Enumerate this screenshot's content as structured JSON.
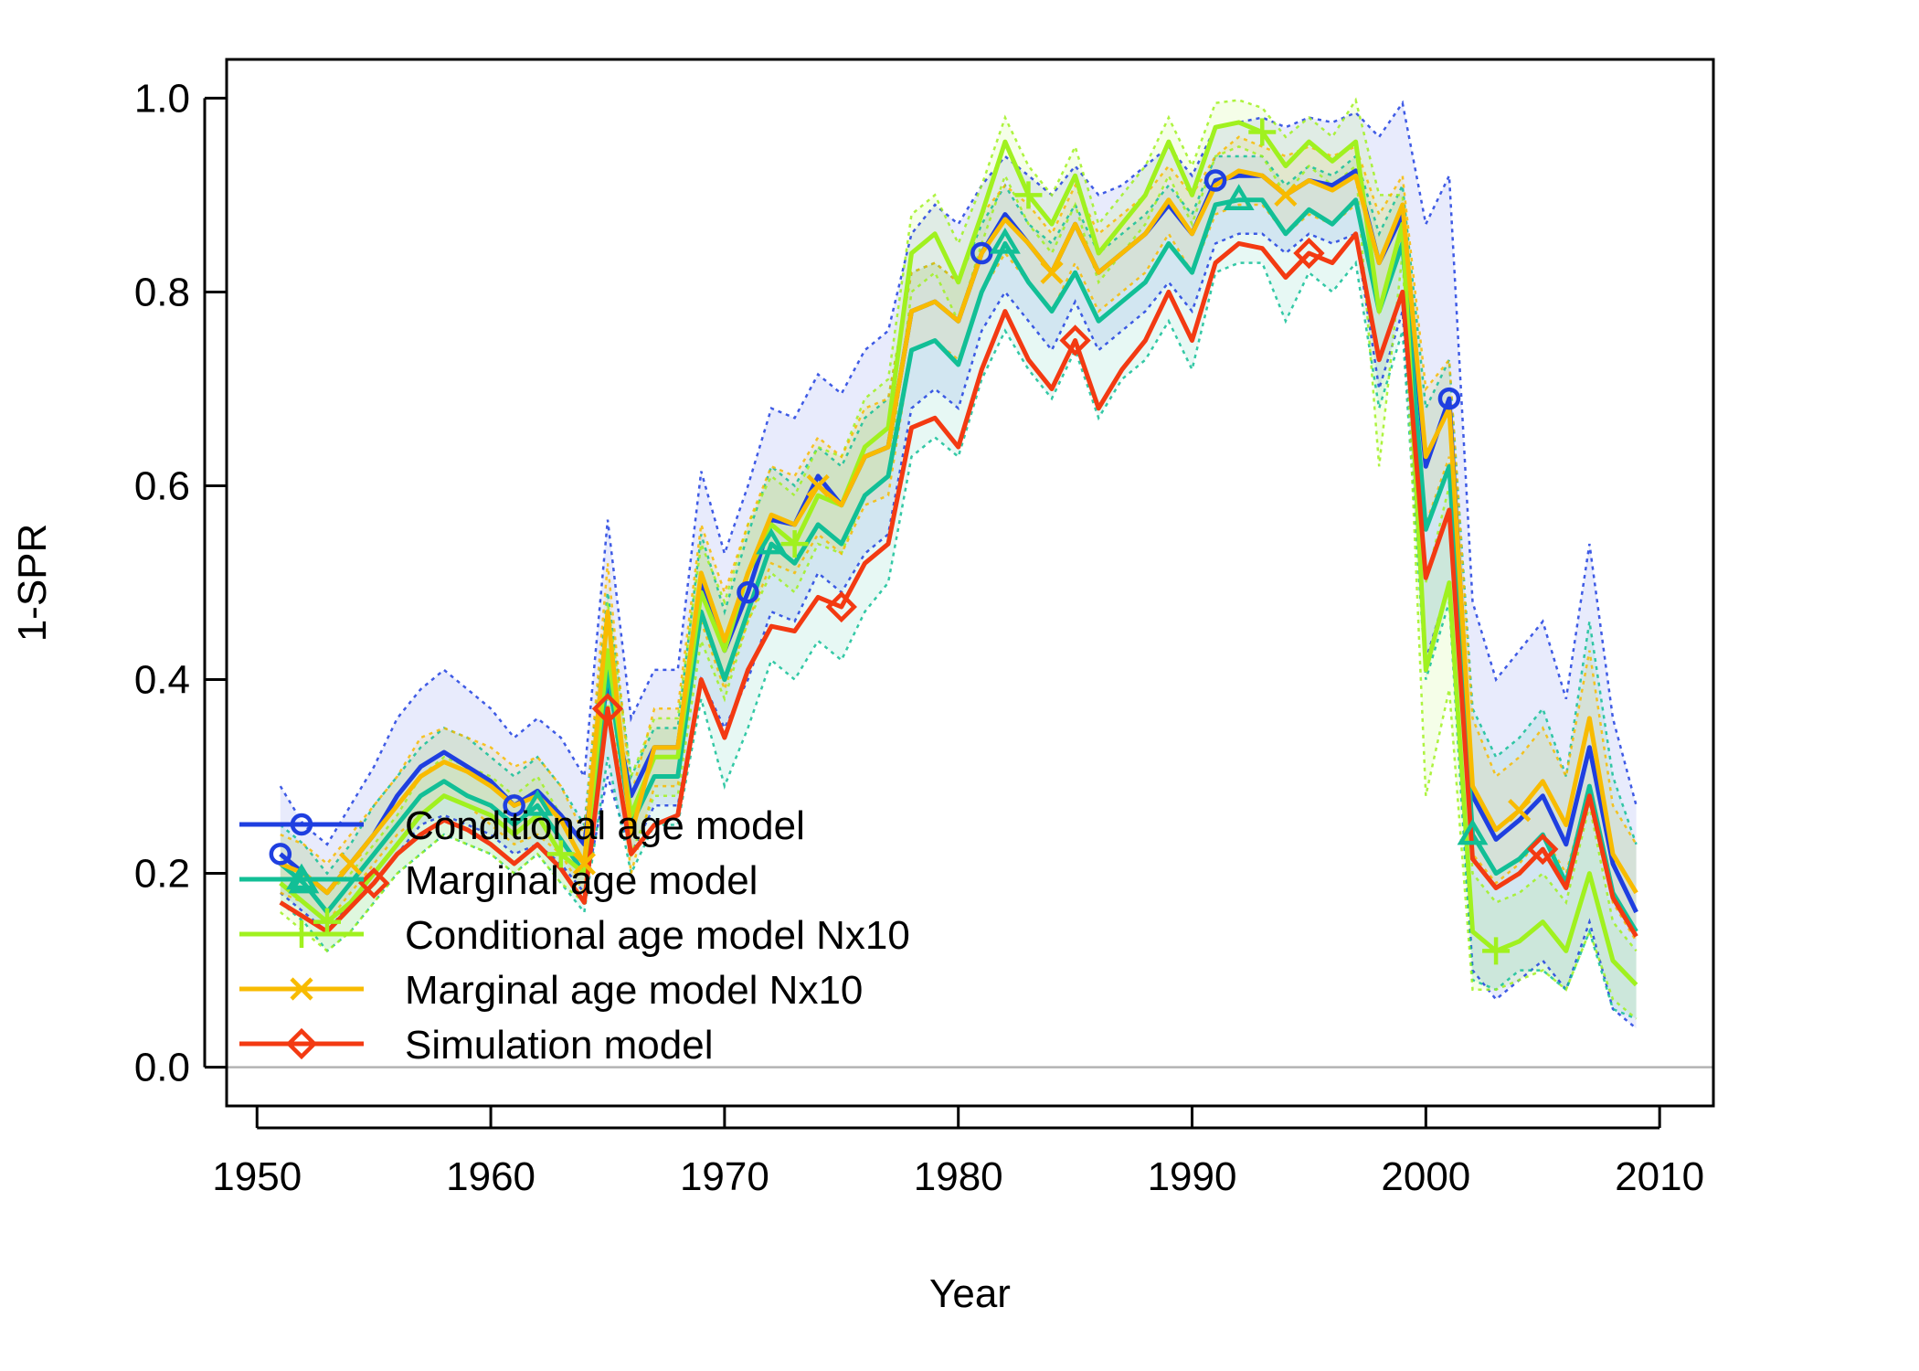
{
  "chart_data": {
    "type": "line",
    "xlabel": "Year",
    "ylabel": "1-SPR",
    "xlim": [
      1948.7,
      2012.3
    ],
    "ylim": [
      -0.04,
      1.04
    ],
    "xticks": [
      1950,
      1960,
      1970,
      1980,
      1990,
      2000,
      2010
    ],
    "xtick_labels": [
      "1950",
      "1960",
      "1970",
      "1980",
      "1990",
      "2000",
      "2010"
    ],
    "yticks": [
      0.0,
      0.2,
      0.4,
      0.6,
      0.8,
      1.0
    ],
    "ytick_labels": [
      "0.0",
      "0.2",
      "0.4",
      "0.6",
      "0.8",
      "1.0"
    ],
    "reference_line": {
      "y": 0.0,
      "color": "#b3b3b3"
    },
    "legend_position": "bottom-left",
    "x": [
      1951,
      1952,
      1953,
      1954,
      1955,
      1956,
      1957,
      1958,
      1959,
      1960,
      1961,
      1962,
      1963,
      1964,
      1965,
      1966,
      1967,
      1968,
      1969,
      1970,
      1971,
      1972,
      1973,
      1974,
      1975,
      1976,
      1977,
      1978,
      1979,
      1980,
      1981,
      1982,
      1983,
      1984,
      1985,
      1986,
      1987,
      1988,
      1989,
      1990,
      1991,
      1992,
      1993,
      1994,
      1995,
      1996,
      1997,
      1998,
      1999,
      2000,
      2001,
      2002,
      2003,
      2004,
      2005,
      2006,
      2007,
      2008,
      2009
    ],
    "series": [
      {
        "name": "Conditional age model",
        "color": "#1f3fe0",
        "marker": "circle",
        "marker_x": [
          1951,
          1961,
          1971,
          1981,
          1991,
          2001
        ],
        "values": [
          0.22,
          0.2,
          0.18,
          0.21,
          0.24,
          0.28,
          0.31,
          0.325,
          0.31,
          0.295,
          0.27,
          0.285,
          0.26,
          0.23,
          0.4,
          0.28,
          0.33,
          0.33,
          0.5,
          0.43,
          0.49,
          0.565,
          0.56,
          0.61,
          0.58,
          0.63,
          0.64,
          0.78,
          0.79,
          0.77,
          0.84,
          0.88,
          0.85,
          0.82,
          0.87,
          0.82,
          0.84,
          0.86,
          0.89,
          0.86,
          0.915,
          0.92,
          0.92,
          0.9,
          0.915,
          0.91,
          0.925,
          0.83,
          0.88,
          0.62,
          0.69,
          0.28,
          0.235,
          0.255,
          0.28,
          0.23,
          0.33,
          0.21,
          0.16
        ],
        "ci_lower": [
          0.18,
          0.16,
          0.14,
          0.17,
          0.19,
          0.22,
          0.25,
          0.26,
          0.25,
          0.24,
          0.22,
          0.23,
          0.21,
          0.18,
          0.3,
          0.22,
          0.27,
          0.27,
          0.4,
          0.35,
          0.4,
          0.47,
          0.46,
          0.51,
          0.49,
          0.53,
          0.55,
          0.68,
          0.7,
          0.68,
          0.76,
          0.8,
          0.77,
          0.74,
          0.79,
          0.74,
          0.76,
          0.78,
          0.81,
          0.78,
          0.85,
          0.86,
          0.86,
          0.84,
          0.86,
          0.85,
          0.86,
          0.7,
          0.78,
          0.42,
          0.5,
          0.1,
          0.07,
          0.09,
          0.11,
          0.08,
          0.15,
          0.06,
          0.04
        ],
        "ci_upper": [
          0.29,
          0.25,
          0.23,
          0.27,
          0.31,
          0.36,
          0.39,
          0.41,
          0.39,
          0.37,
          0.34,
          0.36,
          0.34,
          0.3,
          0.565,
          0.36,
          0.41,
          0.41,
          0.615,
          0.53,
          0.6,
          0.68,
          0.67,
          0.715,
          0.695,
          0.74,
          0.76,
          0.86,
          0.89,
          0.87,
          0.91,
          0.94,
          0.92,
          0.9,
          0.93,
          0.9,
          0.91,
          0.93,
          0.95,
          0.92,
          0.97,
          0.975,
          0.98,
          0.97,
          0.98,
          0.975,
          0.985,
          0.96,
          0.995,
          0.87,
          0.92,
          0.48,
          0.4,
          0.43,
          0.46,
          0.38,
          0.54,
          0.36,
          0.27
        ]
      },
      {
        "name": "Marginal age model",
        "color": "#12bf96",
        "marker": "triangle",
        "marker_x": [
          1952,
          1962,
          1972,
          1982,
          1992,
          2002
        ],
        "values": [
          0.21,
          0.19,
          0.16,
          0.19,
          0.22,
          0.25,
          0.28,
          0.295,
          0.28,
          0.27,
          0.25,
          0.27,
          0.235,
          0.2,
          0.41,
          0.25,
          0.3,
          0.3,
          0.47,
          0.4,
          0.47,
          0.54,
          0.52,
          0.56,
          0.54,
          0.59,
          0.61,
          0.74,
          0.75,
          0.725,
          0.8,
          0.85,
          0.81,
          0.78,
          0.82,
          0.77,
          0.79,
          0.81,
          0.85,
          0.82,
          0.89,
          0.895,
          0.895,
          0.86,
          0.885,
          0.87,
          0.895,
          0.78,
          0.85,
          0.555,
          0.62,
          0.24,
          0.2,
          0.215,
          0.24,
          0.19,
          0.29,
          0.18,
          0.14
        ],
        "ci_lower": [
          0.17,
          0.15,
          0.12,
          0.14,
          0.17,
          0.2,
          0.22,
          0.24,
          0.23,
          0.22,
          0.2,
          0.22,
          0.19,
          0.16,
          0.32,
          0.2,
          0.25,
          0.25,
          0.38,
          0.29,
          0.35,
          0.42,
          0.4,
          0.44,
          0.42,
          0.47,
          0.5,
          0.63,
          0.65,
          0.63,
          0.71,
          0.76,
          0.72,
          0.69,
          0.74,
          0.67,
          0.71,
          0.73,
          0.77,
          0.72,
          0.82,
          0.83,
          0.83,
          0.77,
          0.82,
          0.8,
          0.83,
          0.68,
          0.76,
          0.4,
          0.48,
          0.09,
          0.08,
          0.1,
          0.1,
          0.08,
          0.14,
          0.06,
          0.05
        ],
        "ci_upper": [
          0.25,
          0.23,
          0.2,
          0.23,
          0.27,
          0.3,
          0.33,
          0.35,
          0.34,
          0.32,
          0.3,
          0.32,
          0.29,
          0.25,
          0.49,
          0.3,
          0.35,
          0.35,
          0.55,
          0.47,
          0.55,
          0.62,
          0.6,
          0.64,
          0.62,
          0.67,
          0.69,
          0.82,
          0.83,
          0.81,
          0.87,
          0.91,
          0.87,
          0.85,
          0.89,
          0.84,
          0.86,
          0.88,
          0.91,
          0.88,
          0.94,
          0.94,
          0.94,
          0.91,
          0.93,
          0.92,
          0.94,
          0.86,
          0.91,
          0.68,
          0.73,
          0.37,
          0.32,
          0.34,
          0.37,
          0.3,
          0.46,
          0.3,
          0.23
        ]
      },
      {
        "name": "Conditional age model Nx10",
        "color": "#a0f11f",
        "marker": "plus",
        "marker_x": [
          1953,
          1963,
          1973,
          1983,
          1993,
          2003
        ],
        "values": [
          0.19,
          0.17,
          0.15,
          0.17,
          0.2,
          0.23,
          0.26,
          0.28,
          0.27,
          0.26,
          0.24,
          0.26,
          0.22,
          0.2,
          0.43,
          0.26,
          0.32,
          0.32,
          0.49,
          0.43,
          0.51,
          0.56,
          0.54,
          0.59,
          0.58,
          0.64,
          0.66,
          0.84,
          0.86,
          0.81,
          0.88,
          0.955,
          0.9,
          0.87,
          0.92,
          0.84,
          0.87,
          0.9,
          0.955,
          0.9,
          0.97,
          0.975,
          0.965,
          0.93,
          0.955,
          0.935,
          0.955,
          0.78,
          0.87,
          0.41,
          0.5,
          0.14,
          0.12,
          0.13,
          0.15,
          0.12,
          0.2,
          0.11,
          0.085
        ],
        "ci_lower": [
          0.16,
          0.14,
          0.12,
          0.14,
          0.17,
          0.2,
          0.22,
          0.24,
          0.23,
          0.22,
          0.2,
          0.22,
          0.19,
          0.17,
          0.38,
          0.22,
          0.28,
          0.28,
          0.44,
          0.38,
          0.46,
          0.51,
          0.49,
          0.54,
          0.53,
          0.59,
          0.61,
          0.8,
          0.82,
          0.77,
          0.85,
          0.92,
          0.87,
          0.84,
          0.89,
          0.81,
          0.84,
          0.87,
          0.92,
          0.87,
          0.94,
          0.95,
          0.94,
          0.9,
          0.93,
          0.91,
          0.93,
          0.62,
          0.84,
          0.28,
          0.39,
          0.08,
          0.08,
          0.09,
          0.1,
          0.08,
          0.14,
          0.07,
          0.05
        ],
        "ci_upper": [
          0.22,
          0.2,
          0.18,
          0.2,
          0.23,
          0.26,
          0.3,
          0.32,
          0.31,
          0.3,
          0.28,
          0.3,
          0.26,
          0.23,
          0.48,
          0.3,
          0.36,
          0.36,
          0.54,
          0.48,
          0.56,
          0.61,
          0.59,
          0.64,
          0.63,
          0.69,
          0.71,
          0.88,
          0.9,
          0.85,
          0.91,
          0.98,
          0.93,
          0.9,
          0.95,
          0.87,
          0.9,
          0.93,
          0.98,
          0.93,
          0.995,
          0.998,
          0.99,
          0.96,
          0.98,
          0.96,
          0.998,
          0.9,
          0.9,
          0.5,
          0.6,
          0.2,
          0.17,
          0.18,
          0.2,
          0.17,
          0.27,
          0.15,
          0.12
        ]
      },
      {
        "name": "Marginal age model Nx10",
        "color": "#f8bb00",
        "marker": "cross",
        "marker_x": [
          1954,
          1964,
          1974,
          1984,
          1994,
          2004
        ],
        "values": [
          0.21,
          0.2,
          0.18,
          0.21,
          0.24,
          0.27,
          0.3,
          0.315,
          0.305,
          0.29,
          0.27,
          0.28,
          0.255,
          0.21,
          0.47,
          0.24,
          0.33,
          0.33,
          0.51,
          0.44,
          0.51,
          0.57,
          0.56,
          0.6,
          0.58,
          0.63,
          0.64,
          0.78,
          0.79,
          0.77,
          0.84,
          0.875,
          0.85,
          0.82,
          0.87,
          0.82,
          0.84,
          0.86,
          0.895,
          0.86,
          0.91,
          0.925,
          0.92,
          0.9,
          0.915,
          0.905,
          0.92,
          0.83,
          0.89,
          0.63,
          0.68,
          0.29,
          0.245,
          0.265,
          0.295,
          0.25,
          0.36,
          0.22,
          0.18
        ],
        "ci_lower": [
          0.18,
          0.17,
          0.15,
          0.18,
          0.21,
          0.24,
          0.26,
          0.28,
          0.27,
          0.25,
          0.23,
          0.24,
          0.22,
          0.18,
          0.42,
          0.2,
          0.29,
          0.29,
          0.46,
          0.39,
          0.46,
          0.52,
          0.51,
          0.55,
          0.53,
          0.58,
          0.59,
          0.74,
          0.75,
          0.73,
          0.8,
          0.84,
          0.81,
          0.78,
          0.83,
          0.78,
          0.8,
          0.82,
          0.86,
          0.82,
          0.88,
          0.89,
          0.89,
          0.86,
          0.88,
          0.87,
          0.89,
          0.78,
          0.86,
          0.56,
          0.63,
          0.22,
          0.19,
          0.21,
          0.24,
          0.2,
          0.29,
          0.17,
          0.13
        ],
        "ci_upper": [
          0.24,
          0.23,
          0.21,
          0.24,
          0.27,
          0.3,
          0.34,
          0.35,
          0.34,
          0.33,
          0.31,
          0.32,
          0.29,
          0.24,
          0.52,
          0.28,
          0.37,
          0.37,
          0.56,
          0.49,
          0.56,
          0.62,
          0.61,
          0.65,
          0.63,
          0.68,
          0.69,
          0.82,
          0.83,
          0.81,
          0.88,
          0.91,
          0.89,
          0.86,
          0.91,
          0.86,
          0.88,
          0.9,
          0.93,
          0.9,
          0.94,
          0.96,
          0.95,
          0.94,
          0.95,
          0.94,
          0.95,
          0.88,
          0.92,
          0.7,
          0.73,
          0.36,
          0.3,
          0.32,
          0.35,
          0.3,
          0.43,
          0.27,
          0.23
        ]
      },
      {
        "name": "Simulation model",
        "color": "#f33a12",
        "marker": "diamond",
        "marker_x": [
          1955,
          1965,
          1975,
          1985,
          1995,
          2005
        ],
        "values": [
          0.17,
          0.155,
          0.14,
          0.165,
          0.19,
          0.22,
          0.24,
          0.255,
          0.245,
          0.23,
          0.21,
          0.23,
          0.205,
          0.17,
          0.37,
          0.22,
          0.25,
          0.26,
          0.4,
          0.34,
          0.41,
          0.455,
          0.45,
          0.485,
          0.475,
          0.52,
          0.54,
          0.66,
          0.67,
          0.64,
          0.72,
          0.78,
          0.73,
          0.7,
          0.75,
          0.68,
          0.72,
          0.75,
          0.8,
          0.75,
          0.83,
          0.85,
          0.845,
          0.815,
          0.84,
          0.83,
          0.86,
          0.73,
          0.8,
          0.505,
          0.575,
          0.215,
          0.185,
          0.2,
          0.225,
          0.185,
          0.28,
          0.175,
          0.135
        ]
      }
    ]
  }
}
